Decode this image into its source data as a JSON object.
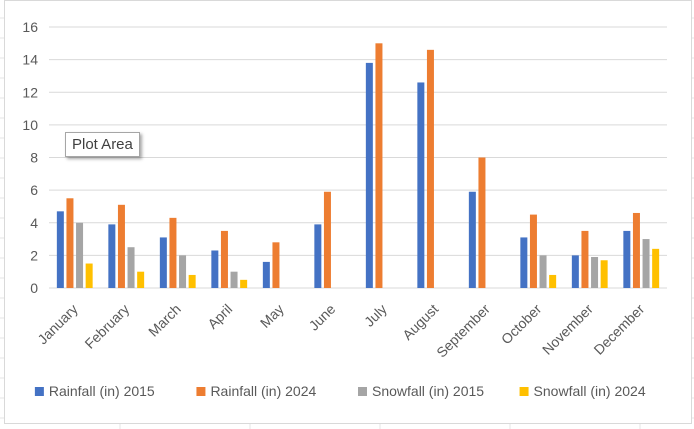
{
  "tooltip": {
    "text": "Plot Area"
  },
  "chart_data": {
    "type": "bar",
    "title": "",
    "xlabel": "",
    "ylabel": "",
    "ylim": [
      0,
      16
    ],
    "yticks": [
      0,
      2,
      4,
      6,
      8,
      10,
      12,
      14,
      16
    ],
    "grid": true,
    "legend_position": "bottom",
    "categories": [
      "January",
      "February",
      "March",
      "April",
      "May",
      "June",
      "July",
      "August",
      "September",
      "October",
      "November",
      "December"
    ],
    "series": [
      {
        "name": "Rainfall (in) 2015",
        "color": "#4472c4",
        "values": [
          4.7,
          3.9,
          3.1,
          2.3,
          1.6,
          3.9,
          13.8,
          12.6,
          5.9,
          3.1,
          2.0,
          3.5
        ]
      },
      {
        "name": "Rainfall (in) 2024",
        "color": "#ed7d31",
        "values": [
          5.5,
          5.1,
          4.3,
          3.5,
          2.8,
          5.9,
          15.0,
          14.6,
          8.0,
          4.5,
          3.5,
          4.6
        ]
      },
      {
        "name": "Snowfall (in) 2015",
        "color": "#a5a5a5",
        "values": [
          4.0,
          2.5,
          2.0,
          1.0,
          0,
          0,
          0,
          0,
          0,
          2.0,
          1.9,
          3.0
        ]
      },
      {
        "name": "Snowfall (in) 2024",
        "color": "#ffc000",
        "values": [
          1.5,
          1.0,
          0.8,
          0.5,
          0,
          0,
          0,
          0,
          0,
          0.8,
          1.7,
          2.4
        ]
      }
    ]
  }
}
